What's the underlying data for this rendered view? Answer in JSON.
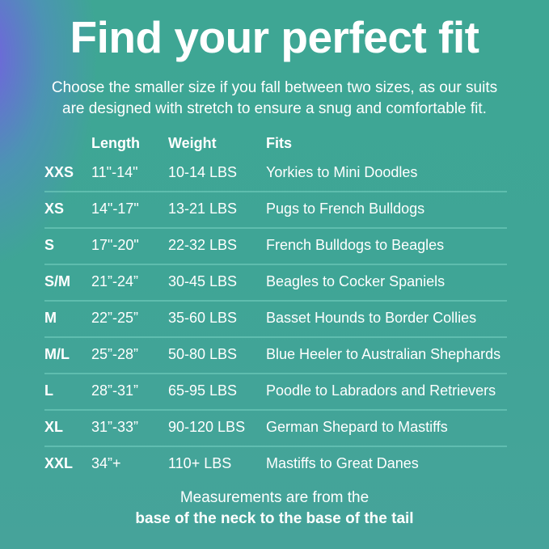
{
  "title": "Find your perfect fit",
  "subtitle_lines": [
    "Choose the smaller size if you fall between two sizes, as our suits",
    "are designed with stretch to ensure a snug and comfortable fit."
  ],
  "table": {
    "headers": {
      "length": "Length",
      "weight": "Weight",
      "fits": "Fits"
    },
    "rows": [
      {
        "size": "XXS",
        "length": "11\"-14\"",
        "weight": "10-14 LBS",
        "fits": "Yorkies to Mini Doodles"
      },
      {
        "size": "XS",
        "length": "14\"-17\"",
        "weight": "13-21 LBS",
        "fits": "Pugs to French Bulldogs"
      },
      {
        "size": "S",
        "length": "17\"-20\"",
        "weight": "22-32 LBS",
        "fits": "French Bulldogs to Beagles"
      },
      {
        "size": "S/M",
        "length": "21”-24”",
        "weight": "30-45 LBS",
        "fits": "Beagles to Cocker Spaniels"
      },
      {
        "size": "M",
        "length": "22”-25”",
        "weight": "35-60 LBS",
        "fits": "Basset Hounds to Border Collies"
      },
      {
        "size": "M/L",
        "length": "25”-28”",
        "weight": "50-80 LBS",
        "fits": "Blue Heeler to Australian Shephards"
      },
      {
        "size": "L",
        "length": "28”-31”",
        "weight": "65-95 LBS",
        "fits": "Poodle to Labradors and Retrievers"
      },
      {
        "size": "XL",
        "length": "31”-33”",
        "weight": "90-120 LBS",
        "fits": "German Shepard to Mastiffs"
      },
      {
        "size": "XXL",
        "length": "34”+",
        "weight": "110+ LBS",
        "fits": "Mastiffs to Great Danes"
      }
    ]
  },
  "footer": {
    "line1": "Measurements are from the",
    "line2": "base of the neck to the base of the tail"
  },
  "colors": {
    "background": "#3fa596",
    "accent_glow": "#7a5ae6",
    "text": "#ffffff"
  }
}
